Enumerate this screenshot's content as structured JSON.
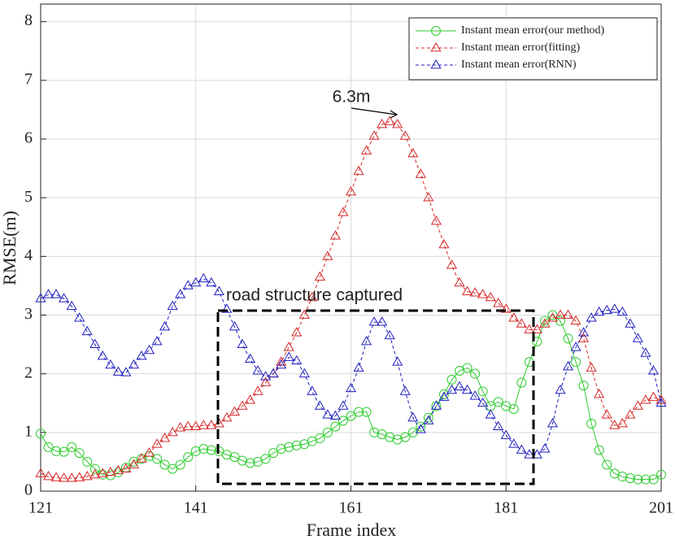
{
  "chart_data": {
    "type": "line",
    "xlabel": "Frame index",
    "ylabel": "RMSE(m)",
    "x": [
      121,
      122,
      123,
      124,
      125,
      126,
      127,
      128,
      129,
      130,
      131,
      132,
      133,
      134,
      135,
      136,
      137,
      138,
      139,
      140,
      141,
      142,
      143,
      144,
      145,
      146,
      147,
      148,
      149,
      150,
      151,
      152,
      153,
      154,
      155,
      156,
      157,
      158,
      159,
      160,
      161,
      162,
      163,
      164,
      165,
      166,
      167,
      168,
      169,
      170,
      171,
      172,
      173,
      174,
      175,
      176,
      177,
      178,
      179,
      180,
      181,
      182,
      183,
      184,
      185,
      186,
      187,
      188,
      189,
      190,
      191,
      192,
      193,
      194,
      195,
      196,
      197,
      198,
      199,
      200,
      201
    ],
    "xlim": [
      121,
      201
    ],
    "xticks": [
      121,
      141,
      161,
      181,
      201
    ],
    "ylim": [
      0,
      8.3
    ],
    "yticks": [
      0,
      1,
      2,
      3,
      4,
      5,
      6,
      7,
      8
    ],
    "grid": true,
    "legend": "upper right",
    "annotations": [
      "6.3m",
      "road structure captured"
    ],
    "series": [
      {
        "name": "Instant mean error(our method)",
        "color": "#2ecc2e",
        "marker": "circle",
        "linestyle": "solid",
        "values": [
          0.98,
          0.75,
          0.68,
          0.67,
          0.75,
          0.65,
          0.5,
          0.38,
          0.28,
          0.27,
          0.32,
          0.4,
          0.5,
          0.55,
          0.6,
          0.55,
          0.45,
          0.38,
          0.45,
          0.58,
          0.68,
          0.72,
          0.7,
          0.68,
          0.62,
          0.58,
          0.52,
          0.48,
          0.5,
          0.55,
          0.65,
          0.72,
          0.75,
          0.78,
          0.8,
          0.85,
          0.9,
          1.0,
          1.1,
          1.2,
          1.28,
          1.35,
          1.35,
          1.0,
          0.97,
          0.92,
          0.88,
          0.92,
          1.0,
          1.1,
          1.25,
          1.45,
          1.65,
          1.9,
          2.05,
          2.1,
          2.0,
          1.7,
          1.45,
          1.52,
          1.45,
          1.4,
          1.85,
          2.2,
          2.55,
          2.9,
          3.0,
          2.9,
          2.6,
          2.2,
          1.8,
          1.15,
          0.7,
          0.45,
          0.3,
          0.25,
          0.22,
          0.2,
          0.2,
          0.2,
          0.28
        ]
      },
      {
        "name": "Instant mean error(fitting)",
        "color": "#d62728",
        "marker": "triangle",
        "linestyle": "dashed",
        "values": [
          0.3,
          0.25,
          0.23,
          0.22,
          0.22,
          0.23,
          0.25,
          0.28,
          0.3,
          0.32,
          0.35,
          0.38,
          0.45,
          0.55,
          0.65,
          0.8,
          0.9,
          1.0,
          1.08,
          1.1,
          1.1,
          1.12,
          1.12,
          1.15,
          1.25,
          1.35,
          1.45,
          1.55,
          1.7,
          1.85,
          2.0,
          2.2,
          2.45,
          2.7,
          3.0,
          3.3,
          3.65,
          4.0,
          4.35,
          4.75,
          5.1,
          5.45,
          5.8,
          6.05,
          6.25,
          6.3,
          6.25,
          6.05,
          5.75,
          5.4,
          5.0,
          4.6,
          4.2,
          3.85,
          3.55,
          3.4,
          3.38,
          3.35,
          3.3,
          3.2,
          3.1,
          2.95,
          2.85,
          2.75,
          2.75,
          2.85,
          2.95,
          3.0,
          3.0,
          2.9,
          2.6,
          2.1,
          1.65,
          1.3,
          1.12,
          1.15,
          1.3,
          1.45,
          1.55,
          1.6,
          1.55
        ]
      },
      {
        "name": "Instant mean error(RNN)",
        "color": "#1f1fbf",
        "marker": "triangle",
        "linestyle": "dashed",
        "values": [
          3.28,
          3.35,
          3.35,
          3.28,
          3.15,
          2.95,
          2.72,
          2.5,
          2.3,
          2.15,
          2.03,
          2.02,
          2.15,
          2.3,
          2.4,
          2.55,
          2.8,
          3.15,
          3.35,
          3.5,
          3.55,
          3.62,
          3.55,
          3.4,
          3.1,
          2.8,
          2.5,
          2.25,
          2.05,
          1.95,
          2.0,
          2.15,
          2.28,
          2.22,
          2.0,
          1.7,
          1.45,
          1.3,
          1.28,
          1.45,
          1.75,
          2.1,
          2.55,
          2.88,
          2.88,
          2.65,
          2.2,
          1.7,
          1.25,
          1.05,
          1.2,
          1.45,
          1.6,
          1.72,
          1.78,
          1.72,
          1.62,
          1.5,
          1.3,
          1.1,
          0.95,
          0.8,
          0.7,
          0.62,
          0.62,
          0.72,
          1.15,
          1.72,
          2.12,
          2.45,
          2.7,
          2.95,
          3.05,
          3.08,
          3.1,
          3.05,
          2.85,
          2.6,
          2.35,
          2.05,
          1.5
        ]
      }
    ]
  }
}
